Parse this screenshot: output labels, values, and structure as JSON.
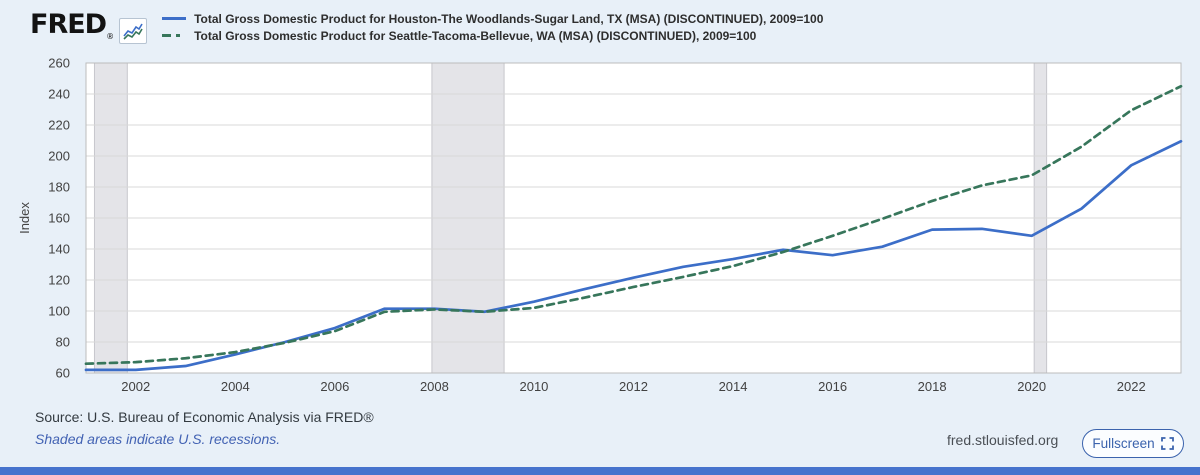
{
  "header": {
    "logo_text": "FRED",
    "logo_registered": "®",
    "sparkline_icon": "fred-sparkline-icon",
    "legend": [
      {
        "label": "Total Gross Domestic Product for Houston-The Woodlands-Sugar Land, TX (MSA) (DISCONTINUED), 2009=100",
        "color": "#3c6ec8",
        "style": "solid"
      },
      {
        "label": "Total Gross Domestic Product for Seattle-Tacoma-Bellevue, WA (MSA) (DISCONTINUED), 2009=100",
        "color": "#37765b",
        "style": "dashed"
      }
    ]
  },
  "chart_data": {
    "type": "line",
    "ylabel": "Index",
    "xlim": [
      2001,
      2023
    ],
    "ylim": [
      60,
      260
    ],
    "ytick_step": 20,
    "yticks": [
      60,
      80,
      100,
      120,
      140,
      160,
      180,
      200,
      220,
      240,
      260
    ],
    "xticks": [
      2002,
      2004,
      2006,
      2008,
      2010,
      2012,
      2014,
      2016,
      2018,
      2020,
      2022
    ],
    "grid": true,
    "legend_position": "top-left-header",
    "x": [
      2001,
      2002,
      2003,
      2004,
      2005,
      2006,
      2007,
      2008,
      2009,
      2010,
      2011,
      2012,
      2013,
      2014,
      2015,
      2016,
      2017,
      2018,
      2019,
      2020,
      2021,
      2022,
      2023
    ],
    "series": [
      {
        "id": "houston-series-line",
        "name": "Total Gross Domestic Product for Houston-The Woodlands-Sugar Land, TX (MSA) (DISCONTINUED), 2009=100",
        "color": "#3c6ec8",
        "dash": null,
        "values": [
          62,
          62,
          64.5,
          72,
          80,
          89,
          101.5,
          101.5,
          99.5,
          106,
          114,
          121.5,
          128.5,
          133.5,
          139.5,
          136,
          141.5,
          152.5,
          153,
          148.5,
          166,
          194,
          209.5
        ]
      },
      {
        "id": "seattle-series-line",
        "name": "Total Gross Domestic Product for Seattle-Tacoma-Bellevue, WA (MSA) (DISCONTINUED), 2009=100",
        "color": "#37765b",
        "dash": "7 5",
        "values": [
          66,
          67,
          69.5,
          73.5,
          79.5,
          87,
          99.5,
          101,
          99.5,
          102,
          108.5,
          115.5,
          122,
          129,
          138,
          148.5,
          159.5,
          171,
          181,
          187.5,
          206,
          229.5,
          245
        ]
      }
    ],
    "recession_bands": [
      [
        2001.17,
        2001.83
      ],
      [
        2007.95,
        2009.4
      ],
      [
        2020.05,
        2020.3
      ]
    ]
  },
  "footer": {
    "source": "Source: U.S. Bureau of Economic Analysis via FRED®",
    "recession_note": "Shaded areas indicate U.S. recessions.",
    "url": "fred.stlouisfed.org",
    "fullscreen_label": "Fullscreen"
  },
  "colors": {
    "background": "#e8f0f8",
    "plot_background": "#ffffff",
    "grid": "#d8d8d8",
    "plot_border": "#bcbcbc",
    "recession": "#e4e4e8",
    "recession_edge": "#c7c7cc",
    "axis_text": "#424242",
    "line_blue": "#3c6ec8",
    "line_green": "#37765b",
    "link_blue": "#4262b3",
    "bottom_bar": "#4673cd"
  }
}
